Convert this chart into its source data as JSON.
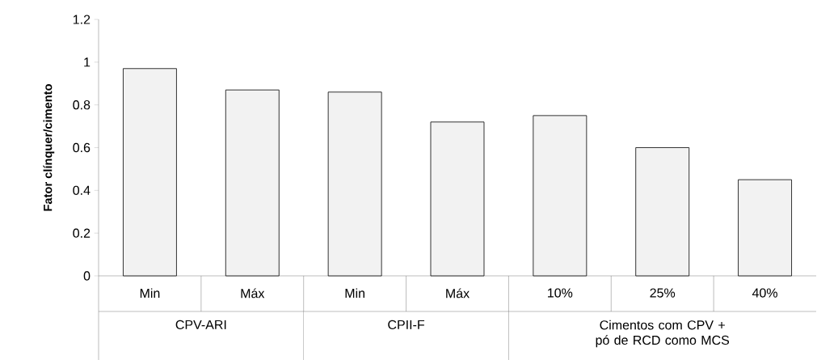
{
  "chart_data": {
    "type": "bar",
    "ylabel": "Fator clínquer/cimento",
    "categories": [
      "Min",
      "Máx",
      "Min",
      "Máx",
      "10%",
      "25%",
      "40%"
    ],
    "values": [
      0.97,
      0.87,
      0.86,
      0.72,
      0.75,
      0.6,
      0.45
    ],
    "color": "#f2f2f2",
    "ylim": [
      0,
      1.2
    ],
    "yticks": [
      0,
      0.2,
      0.4,
      0.6,
      0.8,
      1,
      1.2
    ],
    "annotations": [
      "CPV-ARI",
      "CPII-F",
      "Cimentos com CPV + pó de RCD como MCS"
    ],
    "grid": false
  }
}
